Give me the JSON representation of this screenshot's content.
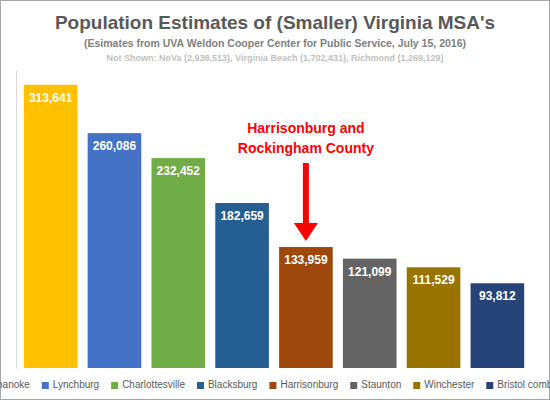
{
  "chart_data": {
    "type": "bar",
    "title": "Population Estimates of (Smaller) Virginia MSA's",
    "subtitle": "(Esimates from UVA Weldon Cooper Center for Public Service, July 15, 2016)",
    "annotations": [
      {
        "text": "Not Shown: NoVa (2,938,513), Virginia Beach (1,702,431), Richmond (1,269,129)"
      },
      {
        "text": "Harrisonburg and Rockingham County",
        "target": "Harrisonburg"
      }
    ],
    "categories": [
      "Roanoke",
      "Lynchburg",
      "Charlottesville",
      "Blacksburg",
      "Harrisonburg",
      "Staunton",
      "Winchester",
      "Bristol combined"
    ],
    "values": [
      313641,
      260086,
      232452,
      182659,
      133959,
      121099,
      111529,
      93812
    ],
    "value_labels": [
      "313,641",
      "260,086",
      "232,452",
      "182,659",
      "133,959",
      "121,099",
      "111,529",
      "93,812"
    ],
    "colors": [
      "#ffc000",
      "#4472c4",
      "#70ad47",
      "#255e91",
      "#9e480e",
      "#636363",
      "#997300",
      "#264478"
    ],
    "ylim": [
      0,
      330000
    ],
    "data_labels": true,
    "tick_labels": false,
    "legend": "bottom"
  }
}
